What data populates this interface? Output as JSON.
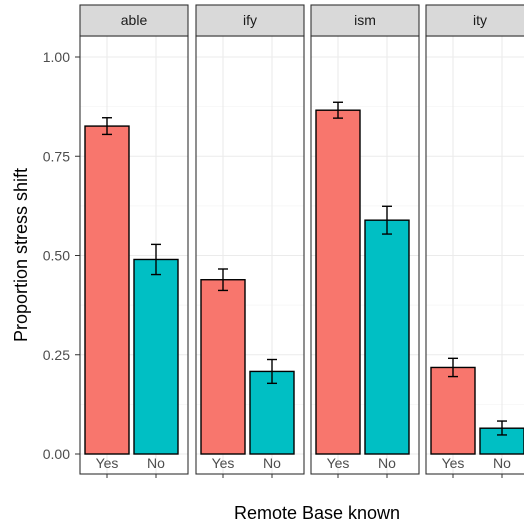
{
  "chart_data": {
    "type": "bar",
    "xlabel": "Remote Base known",
    "ylabel": "Proportion stress shift",
    "ylim": [
      0,
      1.05
    ],
    "yticks": [
      "0.00",
      "0.25",
      "0.50",
      "0.75",
      "1.00"
    ],
    "ytick_values": [
      0,
      0.25,
      0.5,
      0.75,
      1.0
    ],
    "categories": [
      "Yes",
      "No"
    ],
    "colors": {
      "Yes": "#F8766D",
      "No": "#00BFC4"
    },
    "grid": true,
    "theme": "bw-faceted",
    "facets": [
      {
        "label": "able",
        "values": [
          0.826,
          0.49
        ],
        "err_low": [
          0.805,
          0.452
        ],
        "err_high": [
          0.847,
          0.528
        ]
      },
      {
        "label": "ify",
        "values": [
          0.439,
          0.208
        ],
        "err_low": [
          0.412,
          0.178
        ],
        "err_high": [
          0.466,
          0.238
        ]
      },
      {
        "label": "ism",
        "values": [
          0.866,
          0.589
        ],
        "err_low": [
          0.846,
          0.554
        ],
        "err_high": [
          0.886,
          0.624
        ]
      },
      {
        "label": "ity",
        "values": [
          0.218,
          0.065
        ],
        "err_low": [
          0.195,
          0.048
        ],
        "err_high": [
          0.241,
          0.083
        ]
      }
    ]
  }
}
